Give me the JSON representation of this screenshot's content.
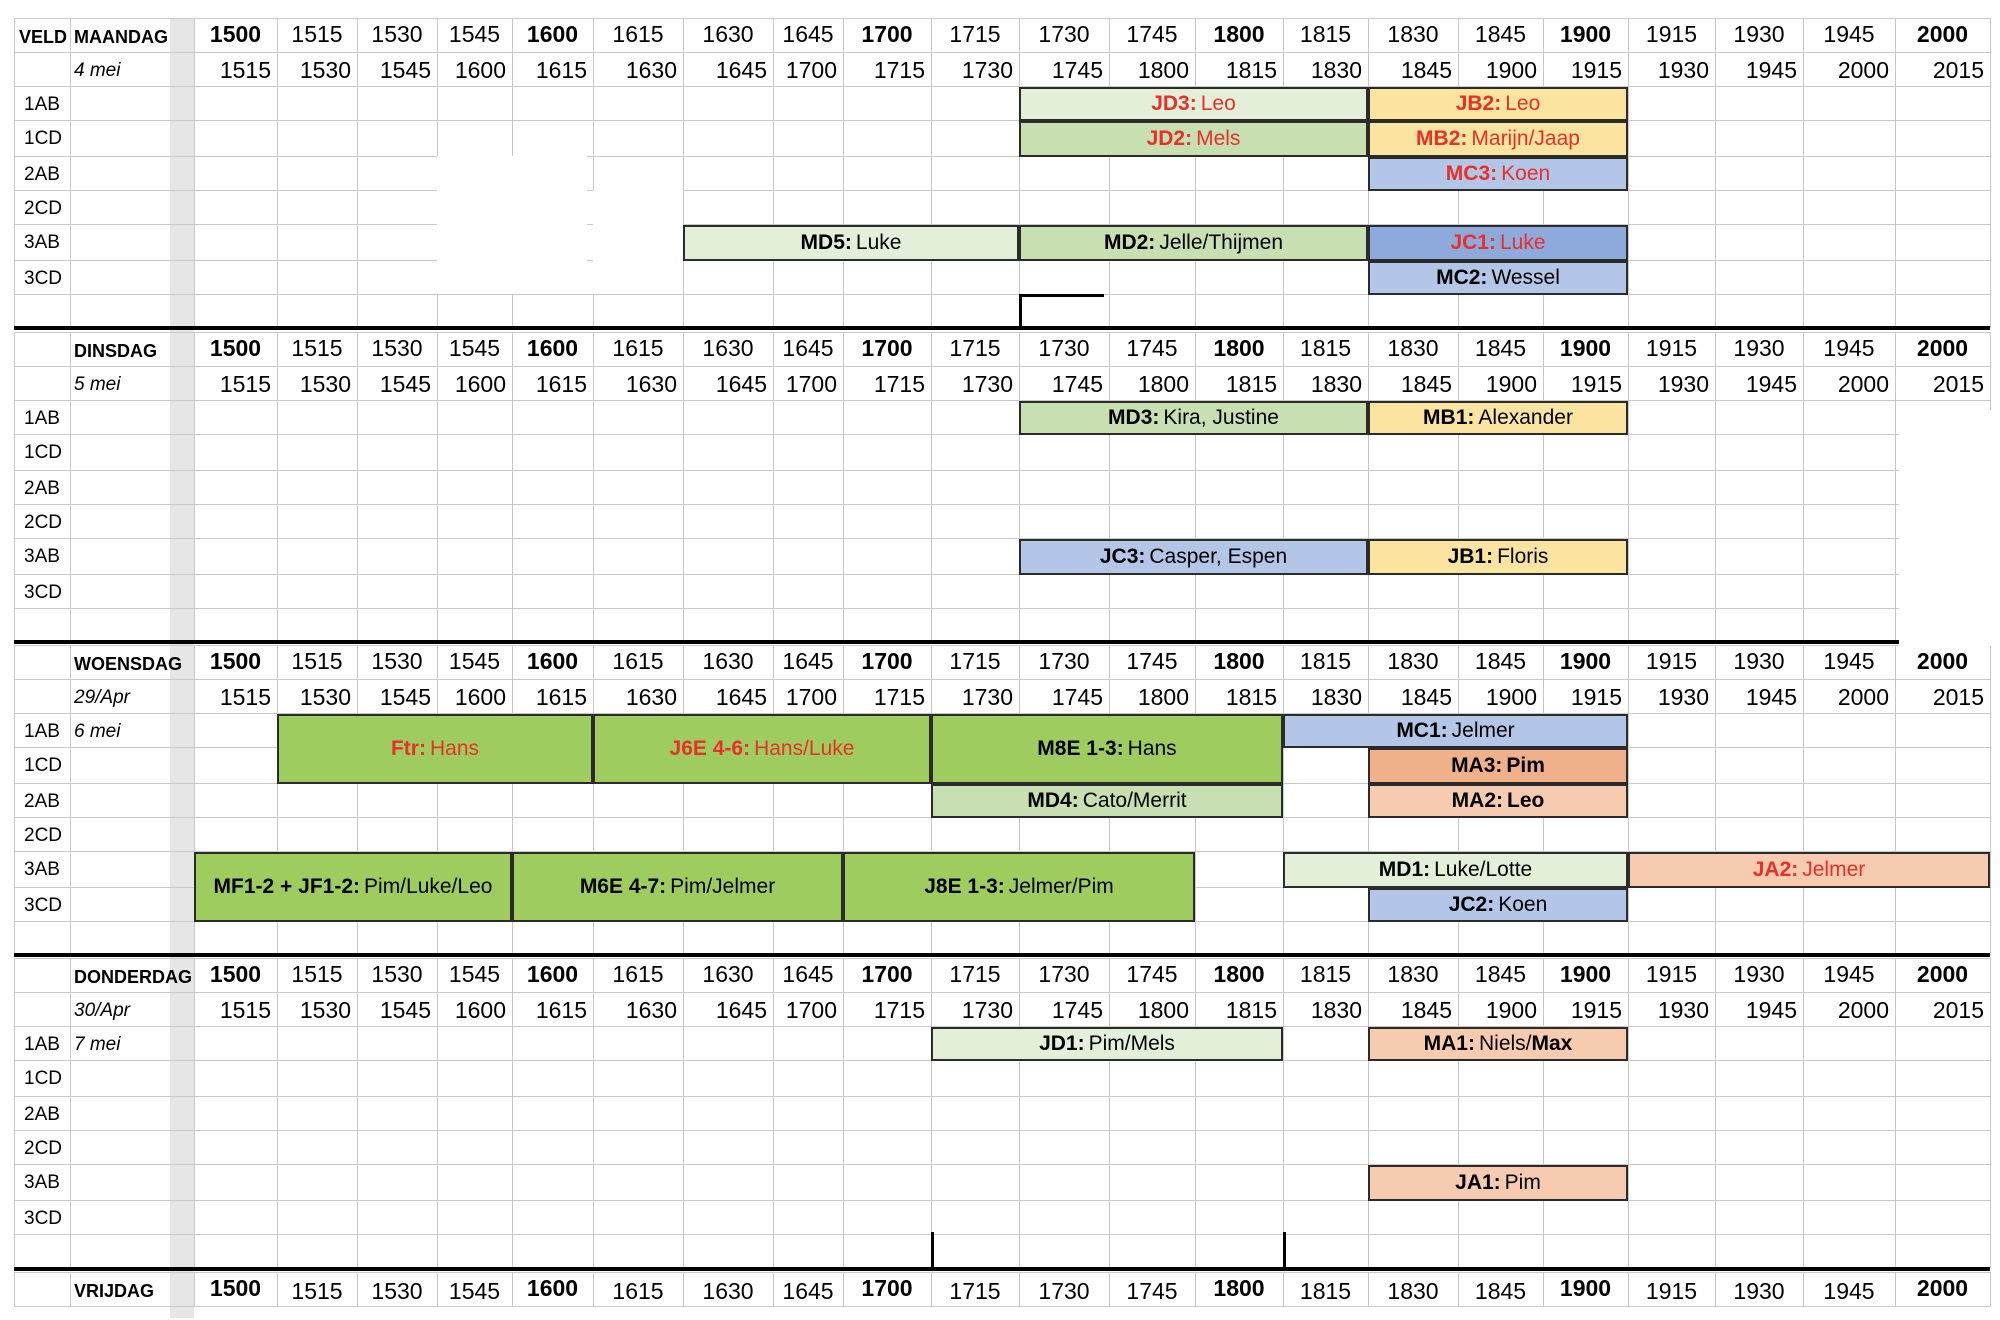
{
  "header": {
    "veld_label": "VELD"
  },
  "colors": {
    "lightgreen": "#d8e8cb",
    "midgreen": "#c7dfb1",
    "palegreen": "#e3efd9",
    "brightgreen": "#9fcc5f",
    "yellow": "#fbe4a0",
    "blue": "#b4c6e7",
    "darkblue": "#8ea9db",
    "orange": "#f0b08a",
    "peach": "#f6cbb0",
    "red_text": "#e8302a"
  },
  "times_top": [
    "1500",
    "1515",
    "1530",
    "1545",
    "1600",
    "1615",
    "1630",
    "1645",
    "1700",
    "1715",
    "1730",
    "1745",
    "1800",
    "1815",
    "1830",
    "1845",
    "1900",
    "1915",
    "1930",
    "1945",
    "2000"
  ],
  "times_bottom": [
    "1515",
    "1530",
    "1545",
    "1600",
    "1615",
    "1630",
    "1645",
    "1700",
    "1715",
    "1730",
    "1745",
    "1800",
    "1815",
    "1830",
    "1845",
    "1900",
    "1915",
    "1930",
    "1945",
    "2000",
    "2015"
  ],
  "fields": [
    "1AB",
    "1CD",
    "2AB",
    "2CD",
    "3AB",
    "3CD"
  ],
  "days": [
    {
      "name": "MAANDAG",
      "date": "4 mei",
      "date2": "",
      "blocks": [
        {
          "code": "JD3:",
          "name": "Leo",
          "color": "palegreen",
          "red": true
        },
        {
          "code": "JB2:",
          "name": "Leo",
          "color": "yellow",
          "red": true
        },
        {
          "code": "JD2:",
          "name": "Mels",
          "color": "midgreen",
          "red": true
        },
        {
          "code": "MB2:",
          "name": "Marijn/Jaap",
          "color": "yellow",
          "red": true
        },
        {
          "code": "MC3:",
          "name": "Koen",
          "color": "blue",
          "red": true
        },
        {
          "code": "MD5:",
          "name": "Luke",
          "color": "palegreen",
          "red": false
        },
        {
          "code": "MD2:",
          "name": "Jelle/Thijmen",
          "color": "midgreen",
          "red": false
        },
        {
          "code": "JC1:",
          "name": "Luke",
          "color": "darkblue",
          "red": true
        },
        {
          "code": "MC2:",
          "name": "Wessel",
          "color": "blue",
          "red": false
        }
      ]
    },
    {
      "name": "DINSDAG",
      "date": "5 mei",
      "date2": "",
      "blocks": [
        {
          "code": "MD3:",
          "name": "Kira, Justine",
          "color": "midgreen",
          "red": false
        },
        {
          "code": "MB1:",
          "name": "Alexander",
          "color": "yellow",
          "red": false
        },
        {
          "code": "JC3:",
          "name": "Casper, Espen",
          "color": "blue",
          "red": false
        },
        {
          "code": "JB1:",
          "name": "Floris",
          "color": "yellow",
          "red": false
        }
      ]
    },
    {
      "name": "WOENSDAG",
      "date": "29/Apr",
      "date2": "6 mei",
      "blocks": [
        {
          "code": "Ftr:",
          "name": "Hans",
          "color": "brightgreen",
          "red": true
        },
        {
          "code": "J6E 4-6:",
          "name": "Hans/Luke",
          "color": "brightgreen",
          "red": true
        },
        {
          "code": "M8E 1-3:",
          "name": "Hans",
          "color": "brightgreen",
          "red": false
        },
        {
          "code": "MC1:",
          "name": "Jelmer",
          "color": "blue",
          "red": false
        },
        {
          "code": "MA3:",
          "name": "Pim",
          "color": "orange",
          "red": false,
          "bold_name": true
        },
        {
          "code": "MD4:",
          "name": "Cato/Merrit",
          "color": "midgreen",
          "red": false
        },
        {
          "code": "MA2:",
          "name": "Leo",
          "color": "peach",
          "red": false,
          "bold_name": true
        },
        {
          "code": "MF1-2 + JF1-2:",
          "name": "Pim/Luke/Leo",
          "color": "brightgreen",
          "red": false
        },
        {
          "code": "M6E 4-7:",
          "name": "Pim/Jelmer",
          "color": "brightgreen",
          "red": false
        },
        {
          "code": "J8E 1-3:",
          "name": "Jelmer/Pim",
          "color": "brightgreen",
          "red": false
        },
        {
          "code": "MD1:",
          "name": "Luke/Lotte",
          "color": "palegreen",
          "red": false
        },
        {
          "code": "JA2:",
          "name": "Jelmer",
          "color": "peach",
          "red": true
        },
        {
          "code": "JC2:",
          "name": "Koen",
          "color": "blue",
          "red": false
        }
      ]
    },
    {
      "name": "DONDERDAG",
      "date": "30/Apr",
      "date2": "7 mei",
      "blocks": [
        {
          "code": "JD1:",
          "name": "Pim/Mels",
          "color": "palegreen",
          "red": false
        },
        {
          "code": "MA1:",
          "name": "Niels/",
          "name_bold_tail": "Max",
          "color": "peach",
          "red": false
        },
        {
          "code": "JA1:",
          "name": "Pim",
          "color": "peach",
          "red": false
        }
      ]
    },
    {
      "name": "VRIJDAG",
      "date": "",
      "date2": "",
      "blocks": []
    }
  ]
}
